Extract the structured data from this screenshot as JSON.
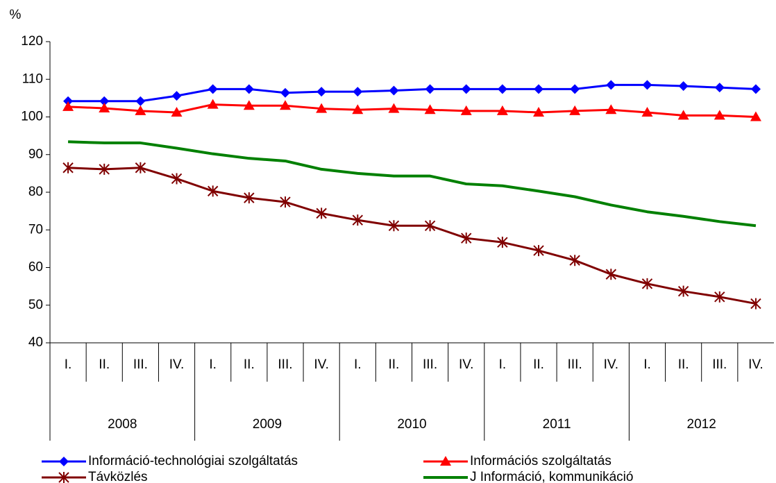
{
  "chart_data": {
    "type": "line",
    "y_label": "%",
    "categories": [
      "I.",
      "II.",
      "III.",
      "IV.",
      "I.",
      "II.",
      "III.",
      "IV.",
      "I.",
      "II.",
      "III.",
      "IV.",
      "I.",
      "II.",
      "III.",
      "IV.",
      "I.",
      "II.",
      "III.",
      "IV."
    ],
    "category_groups": [
      "2008",
      "2009",
      "2010",
      "2011",
      "2012"
    ],
    "ylim": [
      40,
      120
    ],
    "yticks": [
      40,
      50,
      60,
      70,
      80,
      90,
      100,
      110,
      120
    ],
    "grid": false,
    "series": [
      {
        "name": "Információ-technológiai szolgáltatás",
        "color": "#0000ff",
        "marker": "diamond",
        "values": [
          104.2,
          104.2,
          104.2,
          105.6,
          107.4,
          107.4,
          106.4,
          106.7,
          106.7,
          107,
          107.4,
          107.4,
          107.4,
          107.4,
          107.4,
          108.5,
          108.5,
          108.2,
          107.8,
          107.4
        ]
      },
      {
        "name": "Információs szolgáltatás",
        "color": "#ff0000",
        "marker": "triangle",
        "values": [
          102.7,
          102.3,
          101.6,
          101.2,
          103.3,
          103,
          103,
          102.2,
          101.9,
          102.2,
          101.9,
          101.6,
          101.6,
          101.2,
          101.6,
          101.9,
          101.2,
          100.4,
          100.4,
          100
        ]
      },
      {
        "name": "Távközlés",
        "color": "#800000",
        "marker": "star",
        "values": [
          86.5,
          86.1,
          86.5,
          83.6,
          80.3,
          78.5,
          77.4,
          74.4,
          72.6,
          71.1,
          71.1,
          67.8,
          66.7,
          64.5,
          61.9,
          58.2,
          55.7,
          53.7,
          52.2,
          50.4
        ]
      },
      {
        "name": "J Információ, kommunikáció",
        "color": "#008000",
        "marker": "none",
        "values": [
          93.4,
          93.1,
          93.1,
          91.7,
          90.2,
          89,
          88.3,
          86.1,
          85,
          84.3,
          84.3,
          82.2,
          81.7,
          80.3,
          78.8,
          76.6,
          74.8,
          73.6,
          72.2,
          71.1
        ]
      }
    ]
  }
}
